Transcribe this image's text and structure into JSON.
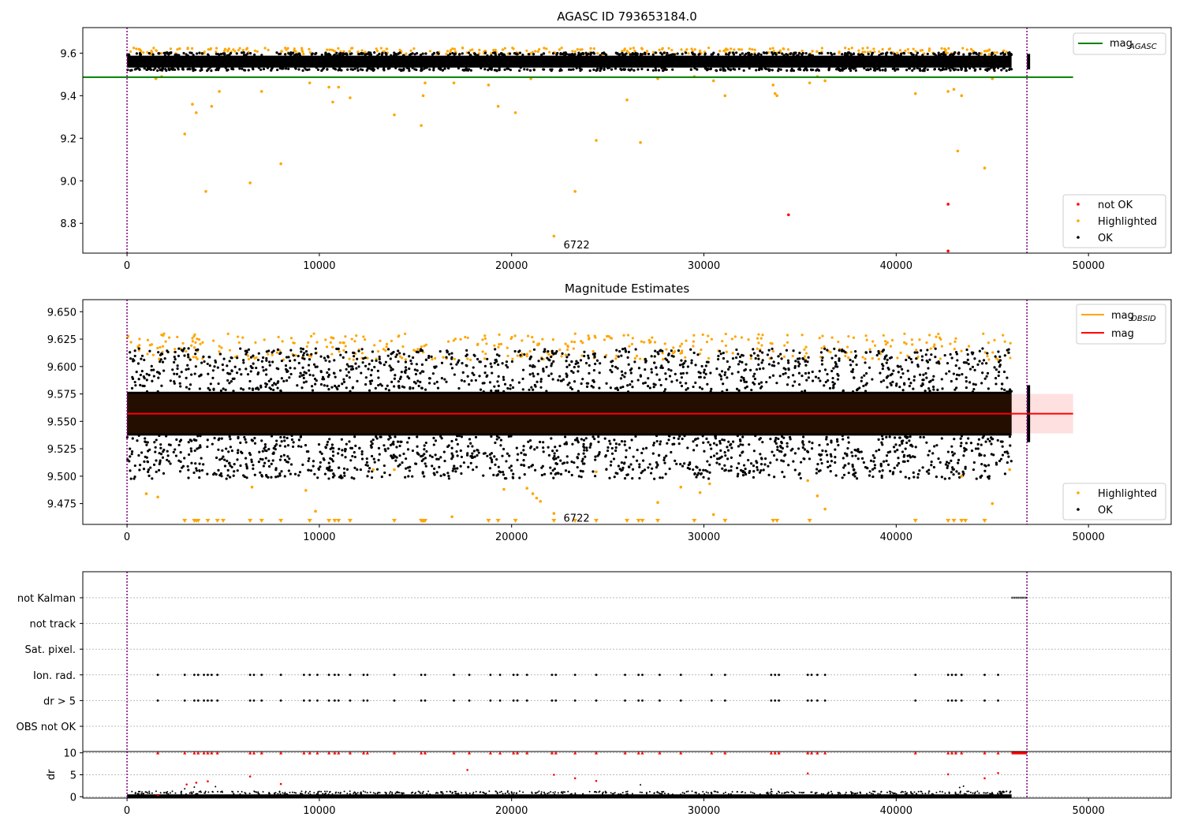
{
  "figure": {
    "background": "#ffffff"
  },
  "colors": {
    "ok": "#000000",
    "highlighted": "#ffa500",
    "not_ok": "#ff0000",
    "mag_agasc_line": "#008000",
    "mag_line": "#ff0000",
    "mag_obsid_line": "#ffa500",
    "obsid_divider": "#800080",
    "band_fill": "#ffcccc"
  },
  "chart_data": [
    {
      "type": "scatter",
      "title": "AGASC ID 793653184.0",
      "xlabel": "",
      "ylabel": "",
      "xlim": [
        -2300,
        54300
      ],
      "ylim": [
        8.66,
        9.72
      ],
      "xticks": [
        0,
        10000,
        20000,
        30000,
        40000,
        50000
      ],
      "yticks": [
        8.8,
        9.0,
        9.2,
        9.4,
        9.6
      ],
      "ytick_labels": [
        "8.8",
        "9.0",
        "9.2",
        "9.4",
        "9.6"
      ],
      "ok_band": {
        "x0": 0,
        "x1": 46000,
        "y_center": 9.56,
        "half_width": 0.028,
        "x2a": 46800,
        "x2b": 46950
      },
      "hlines": [
        {
          "name": "mag_AGASC",
          "y": 9.487,
          "x0": -2300,
          "x1": 49200
        }
      ],
      "obsid_dividers": [
        0,
        46800
      ],
      "highlighted_points": [
        [
          3000,
          9.22
        ],
        [
          3400,
          9.36
        ],
        [
          3600,
          9.32
        ],
        [
          4100,
          8.95
        ],
        [
          4400,
          9.35
        ],
        [
          4800,
          9.42
        ],
        [
          6400,
          8.99
        ],
        [
          7000,
          9.42
        ],
        [
          8000,
          9.08
        ],
        [
          9500,
          9.46
        ],
        [
          10500,
          9.44
        ],
        [
          10700,
          9.37
        ],
        [
          11000,
          9.44
        ],
        [
          11600,
          9.39
        ],
        [
          13900,
          9.31
        ],
        [
          15300,
          9.26
        ],
        [
          15400,
          9.4
        ],
        [
          15500,
          9.46
        ],
        [
          17000,
          9.46
        ],
        [
          18800,
          9.45
        ],
        [
          19300,
          9.35
        ],
        [
          20200,
          9.32
        ],
        [
          21000,
          9.48
        ],
        [
          22200,
          8.74
        ],
        [
          23300,
          8.95
        ],
        [
          24400,
          9.19
        ],
        [
          26000,
          9.38
        ],
        [
          26700,
          9.18
        ],
        [
          27600,
          9.48
        ],
        [
          29500,
          9.49
        ],
        [
          30500,
          9.47
        ],
        [
          31100,
          9.4
        ],
        [
          33600,
          9.45
        ],
        [
          33700,
          9.41
        ],
        [
          33800,
          9.4
        ],
        [
          35500,
          9.46
        ],
        [
          35900,
          9.49
        ],
        [
          36300,
          9.47
        ],
        [
          41000,
          9.41
        ],
        [
          42700,
          9.42
        ],
        [
          43000,
          9.43
        ],
        [
          43400,
          9.4
        ],
        [
          43200,
          9.14
        ],
        [
          44600,
          9.06
        ],
        [
          45000,
          9.48
        ],
        [
          1500,
          9.48
        ],
        [
          1800,
          9.49
        ]
      ],
      "not_ok_points": [
        [
          34400,
          8.84
        ],
        [
          42700,
          8.89
        ],
        [
          42700,
          8.67
        ]
      ],
      "legend_lines": [
        {
          "label": "mag",
          "subscript": "AGASC"
        }
      ],
      "legend_lines_placement": "upper-right",
      "legend_points": [
        {
          "label": "not OK",
          "key": "not_ok"
        },
        {
          "label": "Highlighted",
          "key": "highlighted"
        },
        {
          "label": "OK",
          "key": "ok"
        }
      ],
      "legend_points_placement": "lower-right",
      "annotations": [
        {
          "text": "6722",
          "x": 22700,
          "y": 8.7
        }
      ]
    },
    {
      "type": "scatter",
      "title": "Magnitude Estimates",
      "xlabel": "",
      "ylabel": "",
      "xlim": [
        -2300,
        54300
      ],
      "ylim": [
        9.456,
        9.661
      ],
      "xticks": [
        0,
        10000,
        20000,
        30000,
        40000,
        50000
      ],
      "yticks": [
        9.475,
        9.5,
        9.525,
        9.55,
        9.575,
        9.6,
        9.625,
        9.65
      ],
      "ytick_labels": [
        "9.475",
        "9.500",
        "9.525",
        "9.550",
        "9.575",
        "9.600",
        "9.625",
        "9.650"
      ],
      "ok_band": {
        "x0": 0,
        "x1": 46000,
        "y_center": 9.557,
        "half_width": 0.02,
        "x2a": 46800,
        "x2b": 46950
      },
      "shaded_band": {
        "x0": 0,
        "x1": 49200,
        "y0": 9.539,
        "y1": 9.575
      },
      "mag_line": {
        "name": "mag",
        "y": 9.557,
        "x0": 0,
        "x1": 49200
      },
      "obsid_dividers": [
        0,
        46800
      ],
      "highlighted_points": [
        [
          1000,
          9.484
        ],
        [
          1600,
          9.481
        ],
        [
          6500,
          9.49
        ],
        [
          9300,
          9.487
        ],
        [
          9800,
          9.468
        ],
        [
          12800,
          9.506
        ],
        [
          13900,
          9.506
        ],
        [
          15400,
          9.459
        ],
        [
          16900,
          9.463
        ],
        [
          19600,
          9.488
        ],
        [
          20800,
          9.489
        ],
        [
          21100,
          9.484
        ],
        [
          21300,
          9.48
        ],
        [
          21500,
          9.477
        ],
        [
          22200,
          9.466
        ],
        [
          24400,
          9.504
        ],
        [
          27600,
          9.476
        ],
        [
          28800,
          9.49
        ],
        [
          29800,
          9.485
        ],
        [
          30300,
          9.493
        ],
        [
          30500,
          9.465
        ],
        [
          35400,
          9.496
        ],
        [
          35900,
          9.482
        ],
        [
          36300,
          9.47
        ],
        [
          43400,
          9.5
        ],
        [
          45000,
          9.475
        ],
        [
          45900,
          9.506
        ]
      ],
      "highlighted_low_markers": [
        3000,
        3500,
        3600,
        3700,
        4200,
        4700,
        5000,
        6400,
        7000,
        8000,
        9500,
        10500,
        10800,
        11000,
        11600,
        13900,
        15300,
        15500,
        18800,
        19300,
        20200,
        22200,
        23300,
        24400,
        26000,
        26600,
        26800,
        27600,
        29500,
        31100,
        33600,
        33800,
        35500,
        41000,
        42700,
        43000,
        43400,
        43600,
        44600
      ],
      "legend_lines": [
        {
          "label": "mag",
          "subscript": "OBSID",
          "key": "mag_obsid_line"
        },
        {
          "label": "mag",
          "subscript": "",
          "key": "mag_line"
        }
      ],
      "legend_lines_placement": "upper-right",
      "legend_points": [
        {
          "label": "Highlighted",
          "key": "highlighted"
        },
        {
          "label": "OK",
          "key": "ok"
        }
      ],
      "legend_points_placement": "lower-right",
      "annotations": [
        {
          "text": "6722",
          "x": 22700,
          "y": 9.462
        }
      ]
    },
    {
      "type": "scatter",
      "title": "",
      "xlabel": "",
      "ylabel": "",
      "xlim": [
        -2300,
        54300
      ],
      "categories": [
        "not Kalman",
        "not track",
        "Sat. pixel.",
        "Ion. rad.",
        "dr > 5",
        "OBS not OK"
      ],
      "flag_ticks": [
        1600,
        3000,
        3500,
        3700,
        4000,
        4200,
        4400,
        4700,
        6400,
        6600,
        7000,
        8000,
        9200,
        9500,
        9900,
        10500,
        10800,
        11000,
        11600,
        12300,
        12500,
        13900,
        15300,
        15500,
        17000,
        17800,
        18900,
        19400,
        20100,
        20300,
        20800,
        22100,
        22300,
        23300,
        24400,
        25900,
        26600,
        26800,
        27700,
        28800,
        30400,
        31100,
        33500,
        33700,
        33900,
        35400,
        35600,
        35900,
        36300,
        41000,
        42700,
        42900,
        43100,
        43400,
        44600,
        45300
      ],
      "not_kalman_range": [
        46000,
        46800
      ]
    },
    {
      "type": "scatter",
      "title": "",
      "xlabel": "",
      "ylabel": "dr",
      "xlim": [
        -2300,
        54300
      ],
      "ylim": [
        -0.3,
        10.3
      ],
      "yticks": [
        0,
        5,
        10
      ],
      "ytick_labels": [
        "0",
        "5",
        "10"
      ],
      "xticks": [
        0,
        10000,
        20000,
        30000,
        40000,
        50000
      ],
      "clipped_y": 10,
      "clipped_points": [
        1600,
        3000,
        3500,
        3700,
        4000,
        4200,
        4400,
        4700,
        6400,
        6600,
        7000,
        8000,
        9200,
        9500,
        9900,
        10500,
        10800,
        11000,
        11600,
        12300,
        12500,
        13900,
        15300,
        15500,
        17000,
        17800,
        18900,
        19400,
        20100,
        20300,
        20800,
        22100,
        22300,
        23300,
        24400,
        25900,
        26600,
        26800,
        27700,
        28800,
        30400,
        31100,
        33500,
        33700,
        33900,
        35400,
        35600,
        35900,
        36300,
        41000,
        42700,
        42900,
        43100,
        43400,
        44600,
        45300
      ],
      "red_points": [
        [
          1600,
          0.4
        ],
        [
          3100,
          2.8
        ],
        [
          3600,
          3.2
        ],
        [
          4200,
          3.5
        ],
        [
          6400,
          4.6
        ],
        [
          8000,
          2.9
        ],
        [
          17700,
          6.1
        ],
        [
          22200,
          5.0
        ],
        [
          23300,
          4.2
        ],
        [
          24400,
          3.6
        ],
        [
          35400,
          5.3
        ],
        [
          42700,
          5.1
        ],
        [
          44600,
          4.2
        ],
        [
          45300,
          5.4
        ]
      ],
      "black_small": [
        [
          3000,
          1.8
        ],
        [
          3500,
          2.2
        ],
        [
          4600,
          2.3
        ],
        [
          26700,
          2.7
        ],
        [
          33500,
          1.7
        ],
        [
          43300,
          2.1
        ],
        [
          43500,
          2.4
        ],
        [
          19800,
          1.3
        ],
        [
          11300,
          1.2
        ]
      ],
      "red_range": [
        46000,
        46800
      ],
      "obsid_dividers": [
        0,
        46800
      ]
    }
  ]
}
